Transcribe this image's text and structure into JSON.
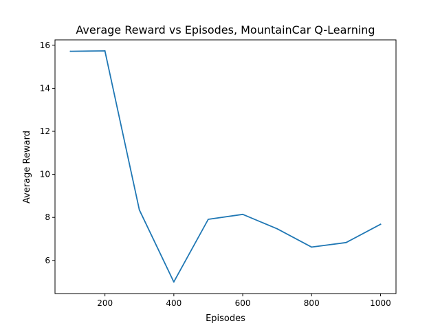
{
  "chart_data": {
    "type": "line",
    "title": "Average Reward vs Episodes, MountainCar Q-Learning",
    "xlabel": "Episodes",
    "ylabel": "Average Reward",
    "xlim": [
      55,
      1045
    ],
    "ylim": [
      4.46,
      16.25
    ],
    "xticks": [
      200,
      400,
      600,
      800,
      1000
    ],
    "yticks": [
      6,
      8,
      10,
      12,
      14,
      16
    ],
    "grid": false,
    "series_color": "#1f77b4",
    "series": [
      {
        "x": [
          100,
          200,
          300,
          400,
          500,
          600,
          700,
          800,
          900,
          1000
        ],
        "values": [
          15.72,
          15.74,
          8.35,
          5.0,
          7.91,
          8.14,
          7.47,
          6.62,
          6.83,
          7.68
        ]
      }
    ]
  }
}
